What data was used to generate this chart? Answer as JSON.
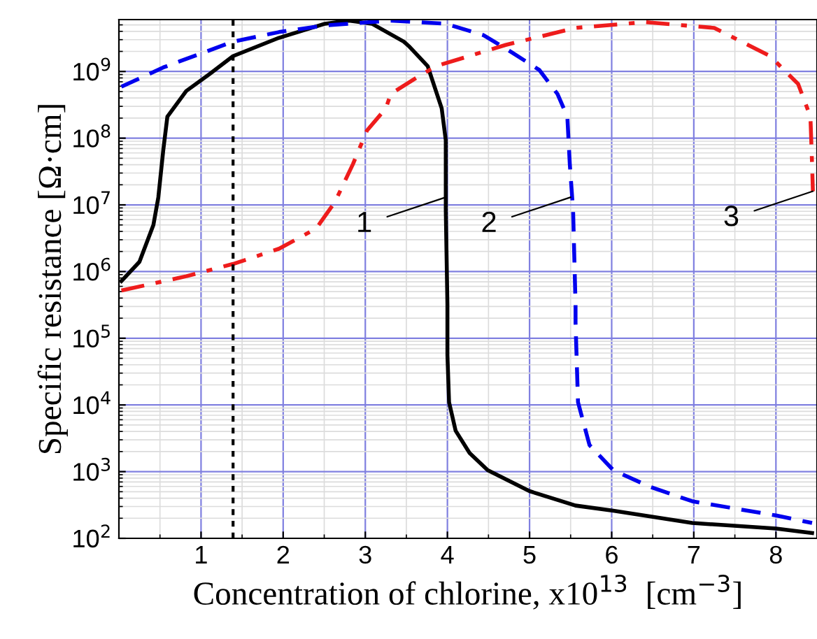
{
  "chart_data": {
    "type": "line",
    "xlabel": "Concentration of chlorine, x10$^{13}$  [cm$^{−3}$]",
    "ylabel": "Specific resistance [Ω·cm]",
    "log": "y",
    "xlim": [
      0,
      8.45
    ],
    "ylim": [
      100,
      6000000000
    ],
    "xticks": [
      1,
      2,
      3,
      4,
      5,
      6,
      7,
      8
    ],
    "yticks": [
      {
        "value": 100,
        "label": "10$^{2}$"
      },
      {
        "value": 1000,
        "label": "10$^{3}$"
      },
      {
        "value": 10000,
        "label": "10$^{4}$"
      },
      {
        "value": 100000,
        "label": "10$^{5}$"
      },
      {
        "value": 1000000,
        "label": "10$^{6}$"
      },
      {
        "value": 10000000,
        "label": "10$^{7}$"
      },
      {
        "value": 100000000,
        "label": "10$^{8}$"
      },
      {
        "value": 1000000000,
        "label": "10$^{9}$"
      }
    ],
    "grid": true,
    "legend": false,
    "marker": "none",
    "series": [
      {
        "color": "#000000",
        "line_style": "solid",
        "x": [
          0.03,
          0.25,
          0.42,
          0.48,
          0.54,
          0.59,
          0.82,
          1.1,
          1.39,
          1.95,
          2.51,
          2.8,
          3.08,
          3.47,
          3.53,
          3.76,
          3.93,
          3.98,
          3.98,
          4.0,
          4.0,
          4.02,
          4.1,
          4.27,
          4.49,
          5.0,
          5.56,
          6.02,
          6.98,
          8.0,
          8.44
        ],
        "values": [
          720000,
          1400000,
          5000000,
          13000000,
          66000000,
          210000000,
          510000000,
          910000000,
          1700000000,
          3200000000,
          5200000000,
          5800000000,
          5200000000,
          2800000000,
          2400000000,
          1200000000,
          280000000,
          93000000,
          8300000,
          320000,
          56000,
          11000,
          4100,
          1900,
          1050,
          510,
          310,
          260,
          170,
          140,
          120
        ]
      },
      {
        "color": "#0000ee",
        "line_style": "dashed",
        "x": [
          0.03,
          0.54,
          1.39,
          1.95,
          2.51,
          3.31,
          3.64,
          3.98,
          4.44,
          4.78,
          5.12,
          5.34,
          5.46,
          5.49,
          5.53,
          5.56,
          5.56,
          5.59,
          5.73,
          6.02,
          6.47,
          6.98,
          8.0,
          8.44
        ],
        "values": [
          590000000,
          1150000000,
          2800000000,
          3900000000,
          4900000000,
          5800000000,
          5500000000,
          5200000000,
          3500000000,
          1950000000,
          1050000000,
          460000000,
          210000000,
          41000000,
          8300000,
          320000,
          170000,
          11000,
          2500,
          1050,
          590,
          360,
          220,
          170
        ]
      },
      {
        "color": "#ee1c1c",
        "line_style": "dashdot",
        "x": [
          0.03,
          0.82,
          1.39,
          1.95,
          2.4,
          2.63,
          2.85,
          3.02,
          3.25,
          3.31,
          3.64,
          3.86,
          4.71,
          5.56,
          6.41,
          7.25,
          7.93,
          8.27,
          8.42,
          8.44,
          8.45
        ],
        "values": [
          520000,
          850000,
          1300000,
          2200000,
          4400000,
          11000000,
          41000000,
          130000000,
          280000000,
          460000000,
          830000000,
          1200000000,
          2500000000,
          4500000000,
          5500000000,
          4500000000,
          1700000000,
          650000000,
          210000000,
          41000000,
          16000000
        ]
      }
    ],
    "ref_lines": [
      {
        "axis": "x",
        "value": 1.39,
        "color": "#000000",
        "line_style": "dotted"
      }
    ],
    "annotations": [
      {
        "text": "1",
        "x": 3.98,
        "y": 13000000
      },
      {
        "text": "2",
        "x": 5.5,
        "y": 13000000
      },
      {
        "text": "3",
        "x": 8.45,
        "y": 16000000
      }
    ]
  }
}
